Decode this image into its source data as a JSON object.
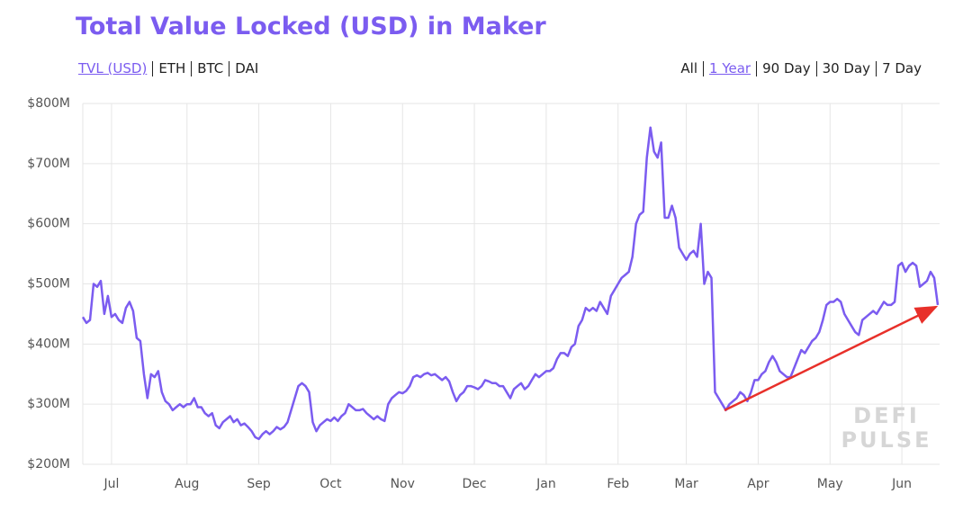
{
  "header": {
    "title": "Total Value Locked (USD) in Maker",
    "metric_options": [
      "TVL (USD)",
      "ETH",
      "BTC",
      "DAI"
    ],
    "selected_metric": 0,
    "range_options": [
      "All",
      "1 Year",
      "90 Day",
      "30 Day",
      "7 Day"
    ],
    "selected_range": 1
  },
  "chart_data": {
    "type": "line",
    "color": "#7b5cf0",
    "grid": true,
    "watermark": [
      "DEFI",
      "PULSE"
    ],
    "ylim": [
      200,
      800
    ],
    "yticks": [
      {
        "value": 200,
        "label": "$200M"
      },
      {
        "value": 300,
        "label": "$300M"
      },
      {
        "value": 400,
        "label": "$400M"
      },
      {
        "value": 500,
        "label": "$500M"
      },
      {
        "value": 600,
        "label": "$600M"
      },
      {
        "value": 700,
        "label": "$700M"
      },
      {
        "value": 800,
        "label": "$800M"
      }
    ],
    "categories": [
      null,
      null,
      null,
      null,
      null,
      null,
      null,
      null,
      "Jul",
      null,
      null,
      null,
      null,
      null,
      null,
      null,
      null,
      null,
      null,
      null,
      null,
      null,
      null,
      null,
      null,
      null,
      null,
      null,
      null,
      "Aug",
      null,
      null,
      null,
      null,
      null,
      null,
      null,
      null,
      null,
      null,
      null,
      null,
      null,
      null,
      null,
      null,
      null,
      null,
      null,
      "Sep",
      null,
      null,
      null,
      null,
      null,
      null,
      null,
      null,
      null,
      null,
      null,
      null,
      null,
      null,
      null,
      null,
      null,
      null,
      null,
      "Oct",
      null,
      null,
      null,
      null,
      null,
      null,
      null,
      null,
      null,
      null,
      null,
      null,
      null,
      null,
      null,
      null,
      null,
      null,
      null,
      "Nov",
      null,
      null,
      null,
      null,
      null,
      null,
      null,
      null,
      null,
      null,
      null,
      null,
      null,
      null,
      null,
      null,
      null,
      null,
      null,
      "Dec",
      null,
      null,
      null,
      null,
      null,
      null,
      null,
      null,
      null,
      null,
      null,
      null,
      null,
      null,
      null,
      null,
      null,
      null,
      null,
      "Jan",
      null,
      null,
      null,
      null,
      null,
      null,
      null,
      null,
      null,
      null,
      null,
      null,
      null,
      null,
      null,
      null,
      null,
      null,
      null,
      "Feb",
      null,
      null,
      null,
      null,
      null,
      null,
      null,
      null,
      null,
      null,
      null,
      null,
      null,
      null,
      null,
      null,
      null,
      null,
      "Mar",
      null,
      null,
      null,
      null,
      null,
      null,
      null,
      null,
      null,
      null,
      null,
      null,
      null,
      null,
      null,
      null,
      null,
      null,
      null,
      "Apr",
      null,
      null,
      null,
      null,
      null,
      null,
      null,
      null,
      null,
      null,
      null,
      null,
      null,
      null,
      null,
      null,
      null,
      null,
      null,
      "May",
      null,
      null,
      null,
      null,
      null,
      null,
      null,
      null,
      null,
      null,
      null,
      null,
      null,
      null,
      null,
      null,
      null,
      null,
      null,
      "Jun",
      null,
      null,
      null,
      null,
      null,
      null,
      null,
      null,
      null,
      null
    ],
    "values": [
      445,
      435,
      440,
      500,
      495,
      505,
      450,
      480,
      445,
      450,
      440,
      435,
      460,
      470,
      455,
      410,
      405,
      350,
      310,
      350,
      345,
      355,
      320,
      305,
      300,
      290,
      295,
      300,
      295,
      300,
      300,
      310,
      295,
      295,
      285,
      280,
      285,
      265,
      260,
      270,
      275,
      280,
      270,
      275,
      265,
      268,
      262,
      255,
      245,
      242,
      250,
      255,
      250,
      255,
      262,
      258,
      262,
      270,
      290,
      310,
      330,
      335,
      330,
      320,
      270,
      255,
      265,
      270,
      275,
      272,
      278,
      272,
      280,
      285,
      300,
      295,
      290,
      290,
      292,
      285,
      280,
      275,
      280,
      275,
      272,
      300,
      310,
      315,
      320,
      318,
      322,
      330,
      345,
      348,
      345,
      350,
      352,
      348,
      350,
      345,
      340,
      345,
      338,
      320,
      305,
      315,
      320,
      330,
      330,
      328,
      325,
      330,
      340,
      338,
      335,
      335,
      330,
      330,
      320,
      310,
      325,
      330,
      335,
      325,
      330,
      340,
      350,
      345,
      350,
      355,
      355,
      360,
      375,
      385,
      385,
      380,
      395,
      400,
      430,
      440,
      460,
      455,
      460,
      455,
      470,
      460,
      450,
      480,
      490,
      500,
      510,
      515,
      520,
      545,
      600,
      615,
      620,
      710,
      760,
      720,
      710,
      735,
      610,
      610,
      630,
      610,
      560,
      550,
      540,
      550,
      555,
      545,
      600,
      500,
      520,
      510,
      320,
      310,
      300,
      290,
      300,
      305,
      310,
      320,
      315,
      305,
      320,
      340,
      340,
      350,
      355,
      370,
      380,
      370,
      355,
      350,
      345,
      345,
      360,
      375,
      390,
      385,
      395,
      405,
      410,
      420,
      440,
      465,
      470,
      470,
      475,
      470,
      450,
      440,
      430,
      420,
      415,
      440,
      445,
      450,
      455,
      450,
      460,
      470,
      465,
      465,
      470,
      530,
      535,
      520,
      530,
      535,
      530,
      495,
      500,
      505,
      520,
      510,
      465
    ]
  }
}
